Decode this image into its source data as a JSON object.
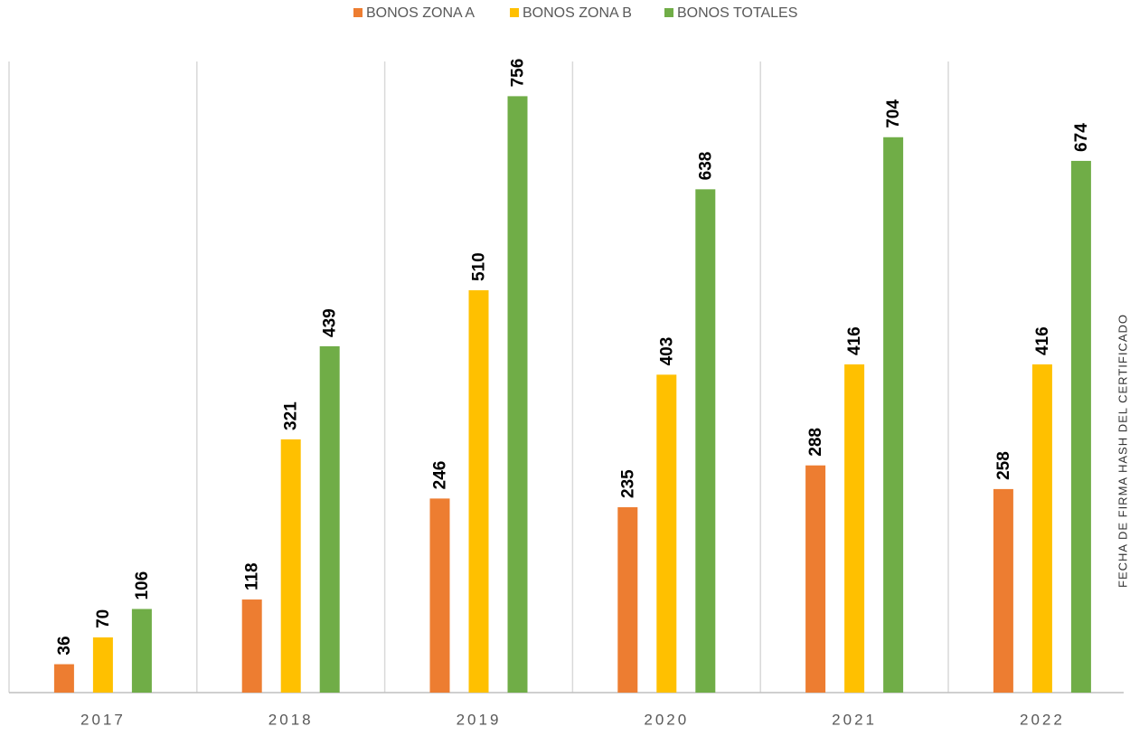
{
  "chart_data": {
    "type": "bar",
    "categories": [
      "2017",
      "2018",
      "2019",
      "2020",
      "2021",
      "2022"
    ],
    "series": [
      {
        "name": "BONOS ZONA A",
        "color": "#ED7D31",
        "values": [
          36,
          118,
          246,
          235,
          288,
          258
        ]
      },
      {
        "name": "BONOS ZONA B",
        "color": "#FFC000",
        "values": [
          70,
          321,
          510,
          403,
          416,
          416
        ]
      },
      {
        "name": "BONOS TOTALES",
        "color": "#70AD47",
        "values": [
          106,
          439,
          756,
          638,
          704,
          674
        ]
      }
    ],
    "ylim": [
      0,
      800
    ],
    "annotation": "FECHA DE FIRMA     HASH DEL CERTIFICADO"
  }
}
